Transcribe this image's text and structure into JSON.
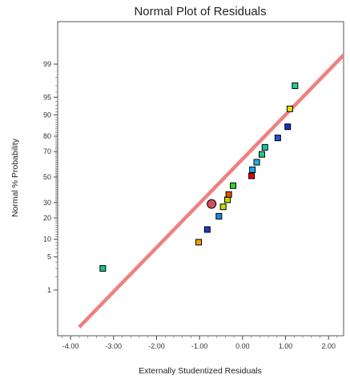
{
  "chart_data": {
    "type": "scatter",
    "title": "Normal Plot of Residuals",
    "xlabel": "Externally Studentized Residuals",
    "ylabel": "Normal % Probability",
    "xlim": [
      -4.3,
      2.35
    ],
    "x_ticks": [
      -4.0,
      -3.0,
      -2.0,
      -1.0,
      0.0,
      1.0,
      2.0
    ],
    "x_tick_labels": [
      "-4.00",
      "-3.00",
      "-2.00",
      "-1.00",
      "0.00",
      "1.00",
      "2.00"
    ],
    "y_scale": "normal-probability",
    "y_ticks": [
      1,
      5,
      10,
      20,
      30,
      50,
      70,
      80,
      90,
      95,
      99
    ],
    "y_tick_labels": [
      "1",
      "5",
      "10",
      "20",
      "30",
      "50",
      "70",
      "80",
      "90",
      "95",
      "99"
    ],
    "points": [
      {
        "x": -3.25,
        "y": 3,
        "color": "#19c48a"
      },
      {
        "x": -1.02,
        "y": 9,
        "color": "#f5a000"
      },
      {
        "x": -0.82,
        "y": 14,
        "color": "#2236c7"
      },
      {
        "x": -0.55,
        "y": 21,
        "color": "#1e88e8"
      },
      {
        "x": -0.45,
        "y": 27,
        "color": "#c8d800"
      },
      {
        "x": -0.35,
        "y": 32,
        "color": "#b8d800"
      },
      {
        "x": -0.32,
        "y": 36,
        "color": "#e85000"
      },
      {
        "x": -0.22,
        "y": 43,
        "color": "#3ad030"
      },
      {
        "x": 0.21,
        "y": 51,
        "color": "#e00000"
      },
      {
        "x": 0.23,
        "y": 56,
        "color": "#1aa8f0"
      },
      {
        "x": 0.33,
        "y": 62,
        "color": "#1ab8e0"
      },
      {
        "x": 0.45,
        "y": 68,
        "color": "#22c888"
      },
      {
        "x": 0.52,
        "y": 73,
        "color": "#18c8a8"
      },
      {
        "x": 0.82,
        "y": 79,
        "color": "#2850d8"
      },
      {
        "x": 1.05,
        "y": 85,
        "color": "#1a30c0"
      },
      {
        "x": 1.1,
        "y": 92,
        "color": "#e8e000"
      },
      {
        "x": 1.22,
        "y": 97,
        "color": "#18d880"
      }
    ],
    "highlighted_point": {
      "x": -0.72,
      "y": 29,
      "color": "#d05060"
    },
    "fit_line": {
      "x": [
        -3.8,
        2.35
      ],
      "y": [
        0.1,
        99.4
      ],
      "color": "#f08080"
    },
    "grid": false,
    "legend": "none"
  }
}
